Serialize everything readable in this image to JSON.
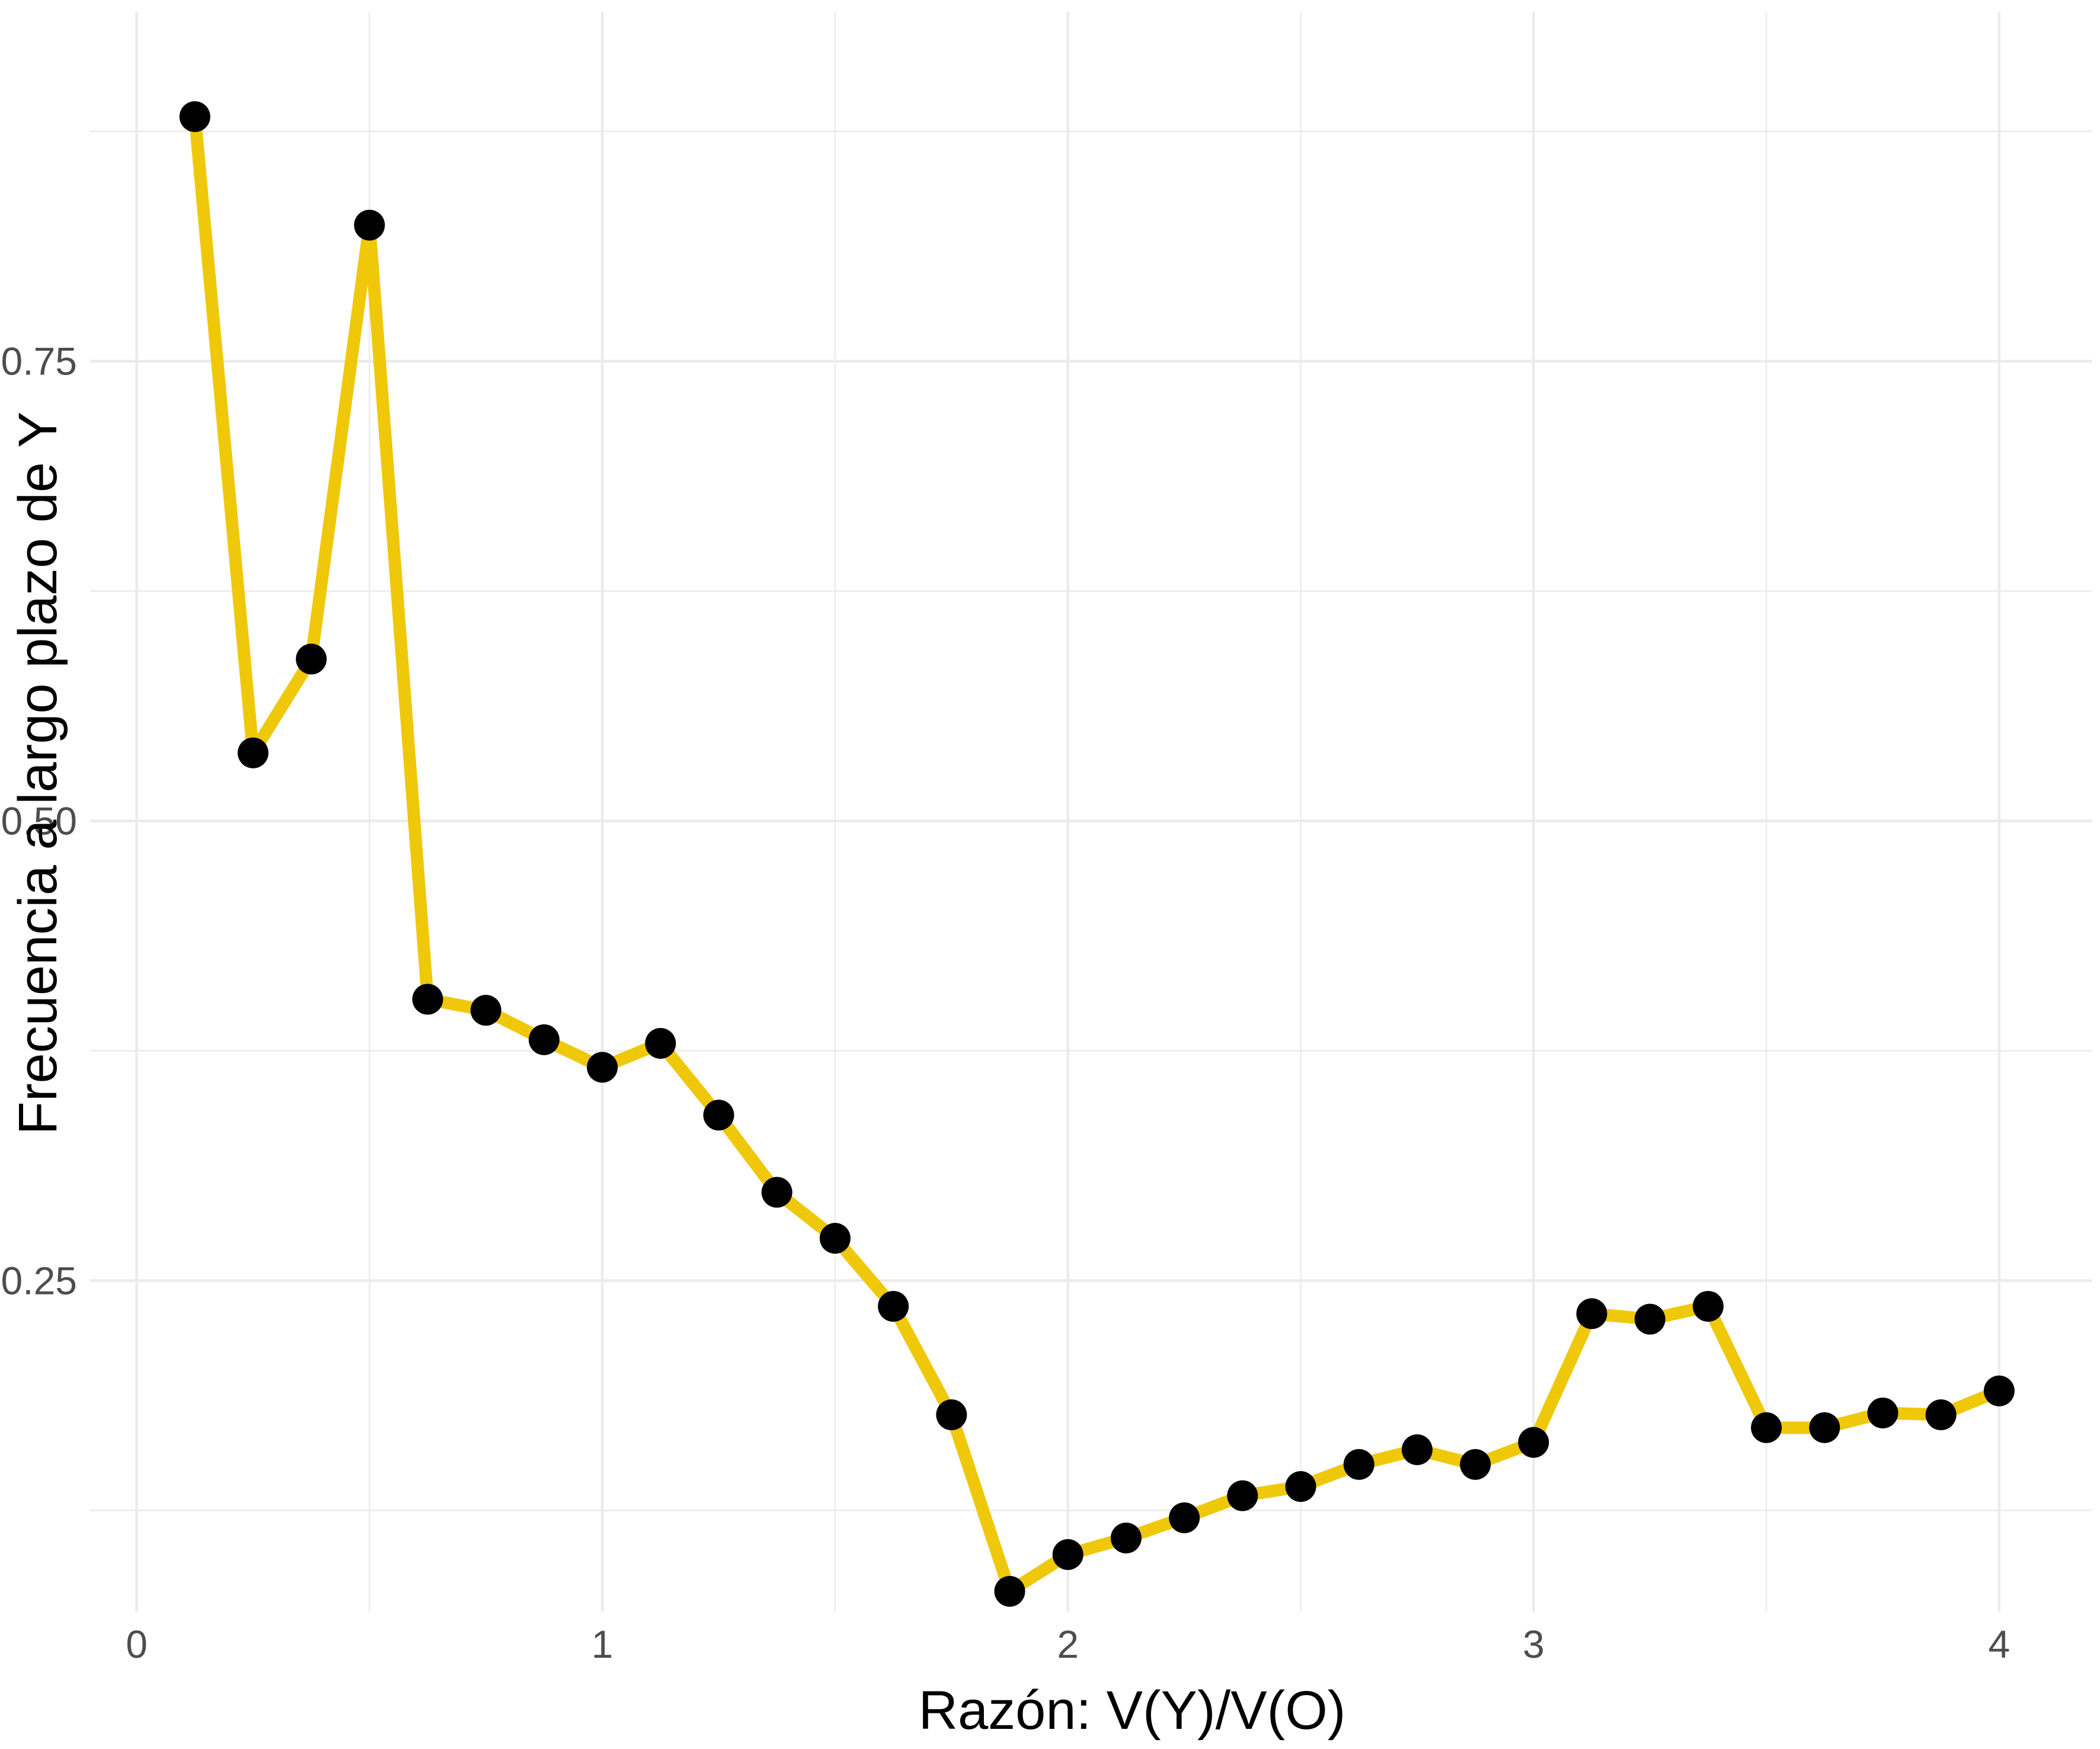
{
  "chart_data": {
    "type": "line",
    "xlabel": "Razón: V(Y)/V(O)",
    "ylabel": "Frecuencia a largo plazo de Y",
    "xlim": [
      -0.1,
      4.2
    ],
    "ylim": [
      0.07,
      0.94
    ],
    "x_ticks": [
      {
        "value": 0,
        "label": "0"
      },
      {
        "value": 1,
        "label": "1"
      },
      {
        "value": 2,
        "label": "2"
      },
      {
        "value": 3,
        "label": "3"
      },
      {
        "value": 4,
        "label": "4"
      }
    ],
    "y_ticks": [
      {
        "value": 0.25,
        "label": "0.25"
      },
      {
        "value": 0.5,
        "label": "0.50"
      },
      {
        "value": 0.75,
        "label": "0.75"
      }
    ],
    "minor_x": [
      0.5,
      1.5,
      2.5,
      3.5
    ],
    "minor_y": [
      0.125,
      0.375,
      0.625,
      0.875
    ],
    "grid": true,
    "colors": {
      "line": "#EFC80A",
      "point": "#000000",
      "grid": "#EBEBEB"
    },
    "series": [
      {
        "x": [
          0.125,
          0.25,
          0.375,
          0.5,
          0.625,
          0.75,
          0.875,
          1.0,
          1.125,
          1.25,
          1.375,
          1.5,
          1.625,
          1.75,
          1.875,
          2.0,
          2.125,
          2.25,
          2.375,
          2.5,
          2.625,
          2.75,
          2.875,
          3.0,
          3.125,
          3.25,
          3.375,
          3.5,
          3.625,
          3.75,
          3.875,
          4.0
        ],
        "y": [
          0.883,
          0.537,
          0.588,
          0.824,
          0.403,
          0.397,
          0.381,
          0.366,
          0.379,
          0.34,
          0.298,
          0.273,
          0.236,
          0.177,
          0.081,
          0.101,
          0.11,
          0.121,
          0.133,
          0.138,
          0.15,
          0.158,
          0.15,
          0.162,
          0.232,
          0.229,
          0.236,
          0.17,
          0.17,
          0.178,
          0.177,
          0.19
        ]
      }
    ]
  }
}
